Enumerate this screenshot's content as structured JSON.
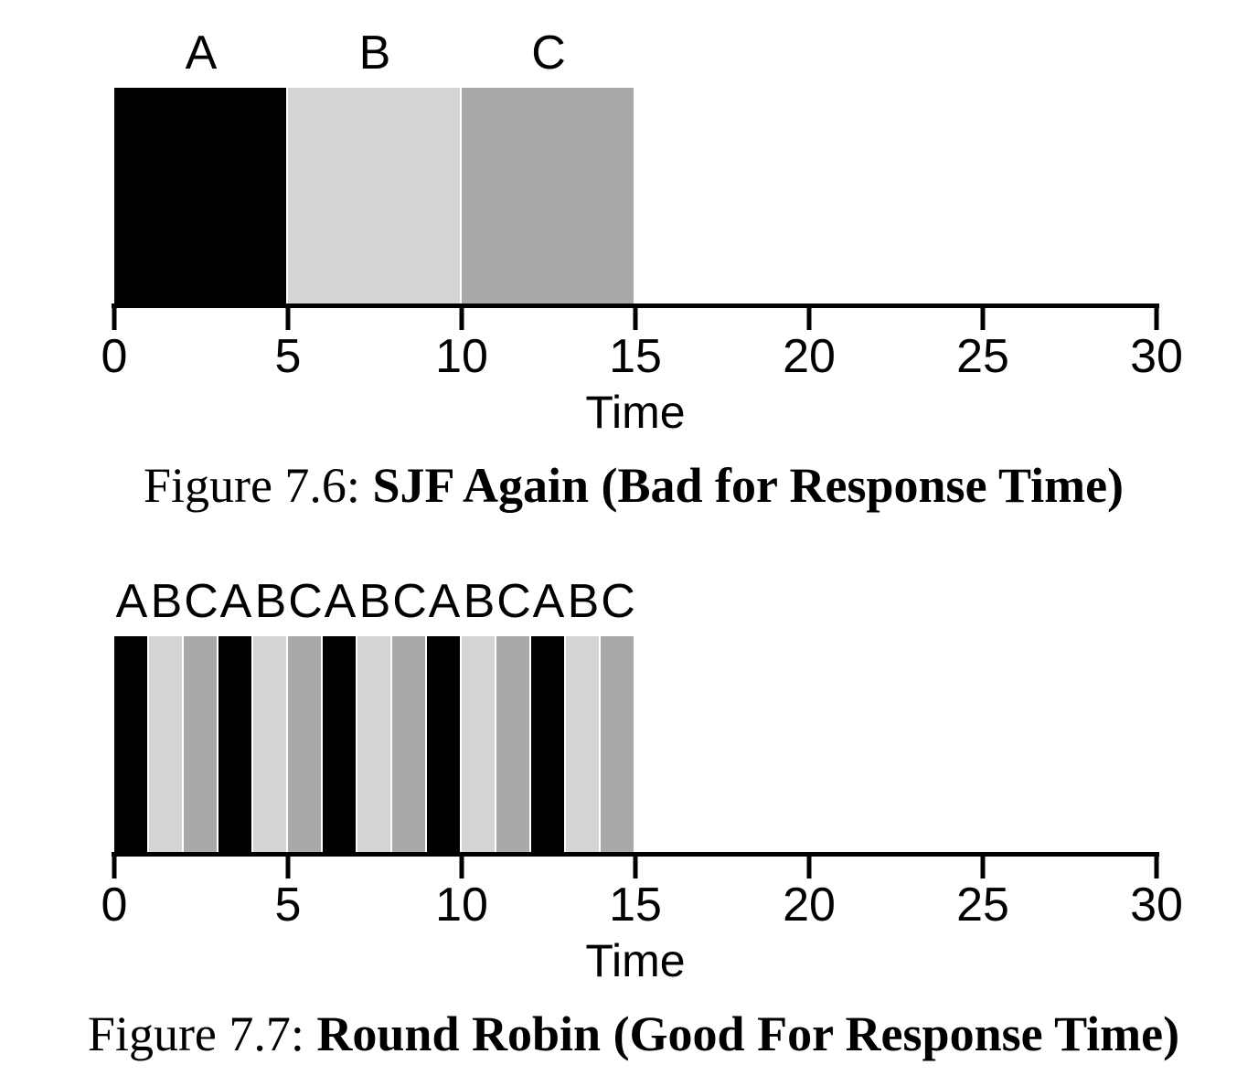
{
  "colors": {
    "A": "#000000",
    "B": "#d5d5d5",
    "C": "#a9a9a9",
    "axis": "#000000",
    "background": "#ffffff",
    "text": "#000000"
  },
  "chart_data": [
    {
      "type": "bar",
      "variant": "scheduling-timeline",
      "caption_prefix": "Figure 7.6:",
      "caption_title": "SJF Again (Bad for Response Time)",
      "xlabel": "Time",
      "xlim": [
        0,
        30
      ],
      "xticks": [
        0,
        5,
        10,
        15,
        20,
        25,
        30
      ],
      "bar_labels": [
        "A",
        "B",
        "C"
      ],
      "segments": [
        {
          "job": "A",
          "start": 0,
          "end": 5
        },
        {
          "job": "B",
          "start": 5,
          "end": 10
        },
        {
          "job": "C",
          "start": 10,
          "end": 15
        }
      ]
    },
    {
      "type": "bar",
      "variant": "scheduling-timeline",
      "caption_prefix": "Figure 7.7:",
      "caption_title": "Round Robin (Good For Response Time)",
      "xlabel": "Time",
      "xlim": [
        0,
        30
      ],
      "xticks": [
        0,
        5,
        10,
        15,
        20,
        25,
        30
      ],
      "bar_labels": [
        "A",
        "B",
        "C",
        "A",
        "B",
        "C",
        "A",
        "B",
        "C",
        "A",
        "B",
        "C",
        "A",
        "B",
        "C"
      ],
      "segments": [
        {
          "job": "A",
          "start": 0,
          "end": 1
        },
        {
          "job": "B",
          "start": 1,
          "end": 2
        },
        {
          "job": "C",
          "start": 2,
          "end": 3
        },
        {
          "job": "A",
          "start": 3,
          "end": 4
        },
        {
          "job": "B",
          "start": 4,
          "end": 5
        },
        {
          "job": "C",
          "start": 5,
          "end": 6
        },
        {
          "job": "A",
          "start": 6,
          "end": 7
        },
        {
          "job": "B",
          "start": 7,
          "end": 8
        },
        {
          "job": "C",
          "start": 8,
          "end": 9
        },
        {
          "job": "A",
          "start": 9,
          "end": 10
        },
        {
          "job": "B",
          "start": 10,
          "end": 11
        },
        {
          "job": "C",
          "start": 11,
          "end": 12
        },
        {
          "job": "A",
          "start": 12,
          "end": 13
        },
        {
          "job": "B",
          "start": 13,
          "end": 14
        },
        {
          "job": "C",
          "start": 14,
          "end": 15
        }
      ]
    }
  ]
}
